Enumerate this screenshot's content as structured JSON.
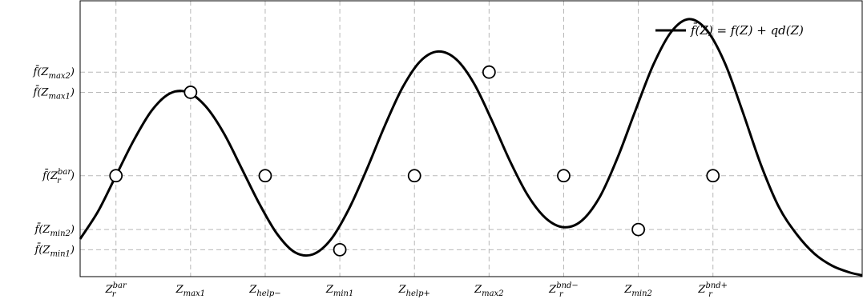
{
  "chart_data": {
    "type": "line",
    "title": "",
    "xlabel": "",
    "ylabel": "",
    "xlim": [
      -0.12,
      2.5
    ],
    "ylim": [
      -0.25,
      1.8
    ],
    "grid": true,
    "legend_position": "top-right",
    "series": [
      {
        "name": "f̄(Z) = f(Z) + qd(Z)",
        "color": "#000000",
        "x": [
          -0.12,
          -0.06,
          0.0,
          0.06,
          0.12,
          0.18,
          0.24,
          0.3,
          0.36,
          0.42,
          0.48,
          0.54,
          0.6,
          0.66,
          0.72,
          0.78,
          0.84,
          0.9,
          0.96,
          1.02,
          1.08,
          1.14,
          1.2,
          1.26,
          1.32,
          1.38,
          1.44,
          1.5,
          1.56,
          1.62,
          1.68,
          1.74,
          1.8,
          1.86,
          1.92,
          1.98,
          2.04,
          2.1,
          2.16,
          2.22,
          2.28,
          2.34,
          2.4,
          2.46,
          2.5
        ],
        "y": [
          0.03,
          0.235,
          0.5,
          0.765,
          0.985,
          1.111,
          1.121,
          1.017,
          0.821,
          0.559,
          0.293,
          0.067,
          -0.07,
          -0.084,
          0.026,
          0.251,
          0.546,
          0.868,
          1.155,
          1.352,
          1.423,
          1.365,
          1.184,
          0.907,
          0.609,
          0.353,
          0.184,
          0.117,
          0.165,
          0.339,
          0.631,
          0.983,
          1.323,
          1.568,
          1.664,
          1.58,
          1.337,
          0.973,
          0.586,
          0.271,
          0.067,
          -0.08,
          -0.17,
          -0.22,
          -0.24
        ]
      }
    ],
    "markers": [
      {
        "x": 0.0,
        "y": 0.5
      },
      {
        "x": 0.25,
        "y": 1.12
      },
      {
        "x": 0.5,
        "y": 0.5
      },
      {
        "x": 0.75,
        "y": -0.05
      },
      {
        "x": 1.0,
        "y": 0.5
      },
      {
        "x": 1.25,
        "y": 1.27
      },
      {
        "x": 1.5,
        "y": 0.5
      },
      {
        "x": 1.75,
        "y": 0.1
      },
      {
        "x": 2.0,
        "y": 0.5
      }
    ],
    "xticks": [
      {
        "x": 0.0,
        "base": "Z",
        "sub": "r",
        "sup": "bar"
      },
      {
        "x": 0.25,
        "base": "Z",
        "sub": "max1",
        "sup": ""
      },
      {
        "x": 0.5,
        "base": "Z",
        "sub": "help−",
        "sup": ""
      },
      {
        "x": 0.75,
        "base": "Z",
        "sub": "min1",
        "sup": ""
      },
      {
        "x": 1.0,
        "base": "Z",
        "sub": "help+",
        "sup": ""
      },
      {
        "x": 1.25,
        "base": "Z",
        "sub": "max2",
        "sup": ""
      },
      {
        "x": 1.5,
        "base": "Z",
        "sub": "r",
        "sup": "bnd−"
      },
      {
        "x": 1.75,
        "base": "Z",
        "sub": "min2",
        "sup": ""
      },
      {
        "x": 2.0,
        "base": "Z",
        "sub": "r",
        "sup": "bnd+"
      }
    ],
    "yticks": [
      {
        "y": 1.27,
        "base": "f̄(Z",
        "sub": "max2",
        "sup": "",
        "close": ")"
      },
      {
        "y": 1.12,
        "base": "f̄(Z",
        "sub": "max1",
        "sup": "",
        "close": ")"
      },
      {
        "y": 0.5,
        "base": "f̄(Z",
        "sub": "r",
        "sup": "bar",
        "close": ")"
      },
      {
        "y": 0.1,
        "base": "f̄(Z",
        "sub": "min2",
        "sup": "",
        "close": ")"
      },
      {
        "y": -0.05,
        "base": "f̄(Z",
        "sub": "min1",
        "sup": "",
        "close": ")"
      }
    ]
  }
}
